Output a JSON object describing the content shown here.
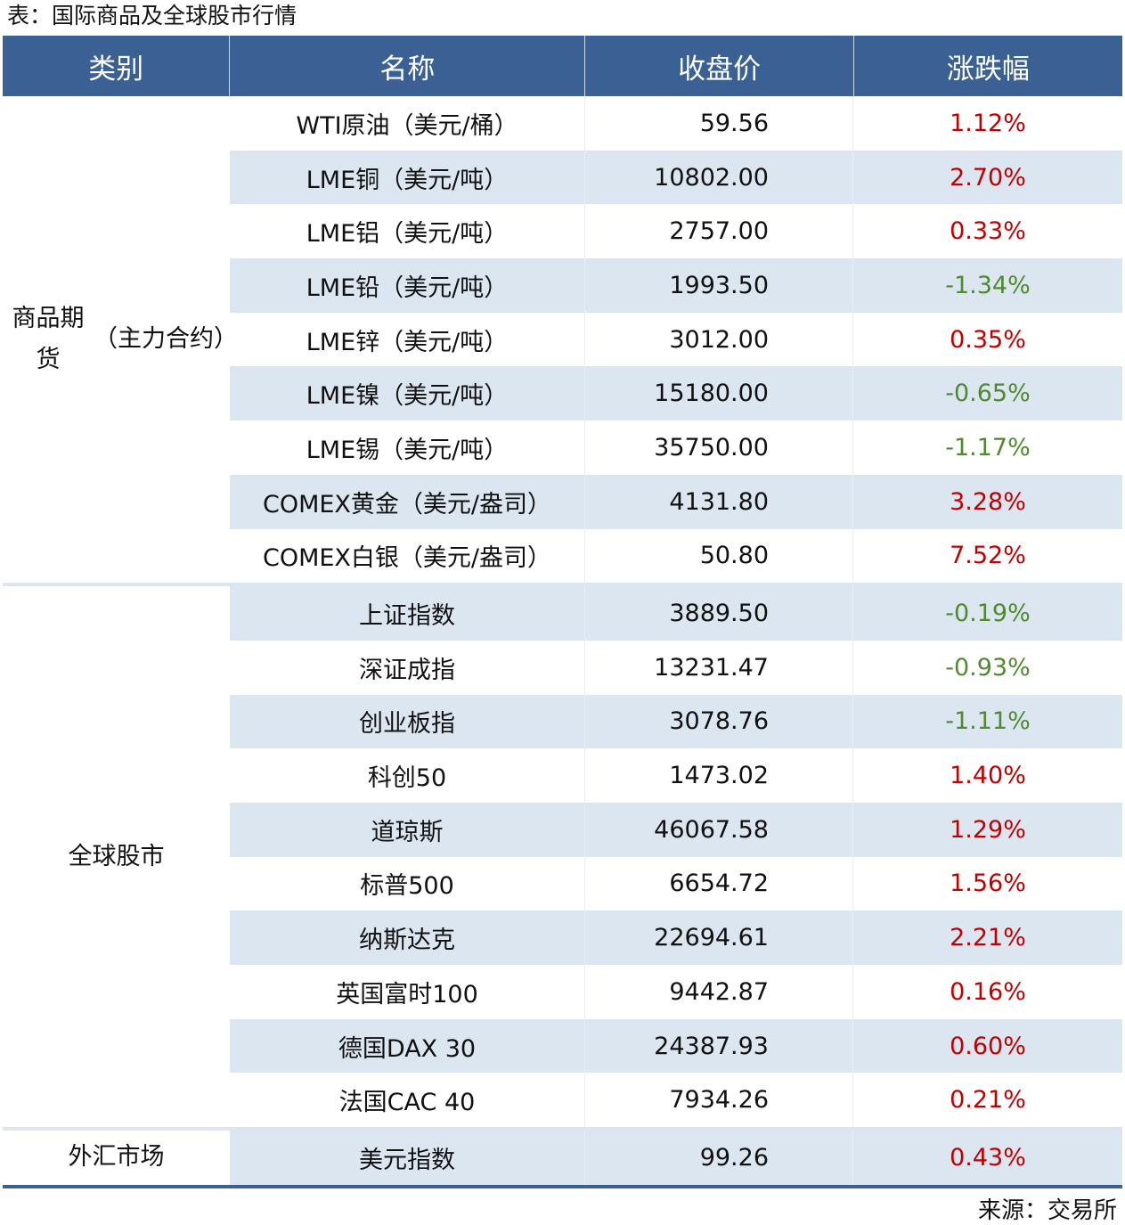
{
  "title": "表：国际商品及全球股市行情",
  "headers": [
    "类别",
    "名称",
    "收盘价",
    "涨跌幅"
  ],
  "colors": {
    "header": "#3b6194",
    "stripe": "#dce6f1",
    "up": "#c00000",
    "down": "#4e8a2e"
  },
  "groups": [
    {
      "label": "商品期货（主力合约）",
      "rows": [
        [
          "WTI原油（美元/桶）",
          "59.56",
          "1.12%"
        ],
        [
          "LME铜（美元/吨）",
          "10802.00",
          "2.70%"
        ],
        [
          "LME铝（美元/吨）",
          "2757.00",
          "0.33%"
        ],
        [
          "LME铅（美元/吨）",
          "1993.50",
          "-1.34%"
        ],
        [
          "LME锌（美元/吨）",
          "3012.00",
          "0.35%"
        ],
        [
          "LME镍（美元/吨）",
          "15180.00",
          "-0.65%"
        ],
        [
          "LME锡（美元/吨）",
          "35750.00",
          "-1.17%"
        ],
        [
          "COMEX黄金（美元/盎司）",
          "4131.80",
          "3.28%"
        ],
        [
          "COMEX白银（美元/盎司）",
          "50.80",
          "7.52%"
        ]
      ]
    },
    {
      "label": "全球股市",
      "rows": [
        [
          "上证指数",
          "3889.50",
          "-0.19%"
        ],
        [
          "深证成指",
          "13231.47",
          "-0.93%"
        ],
        [
          "创业板指",
          "3078.76",
          "-1.11%"
        ],
        [
          "科创50",
          "1473.02",
          "1.40%"
        ],
        [
          "道琼斯",
          "46067.58",
          "1.29%"
        ],
        [
          "标普500",
          "6654.72",
          "1.56%"
        ],
        [
          "纳斯达克",
          "22694.61",
          "2.21%"
        ],
        [
          "英国富时100",
          "9442.87",
          "0.16%"
        ],
        [
          "德国DAX 30",
          "24387.93",
          "0.60%"
        ],
        [
          "法国CAC 40",
          "7934.26",
          "0.21%"
        ]
      ]
    },
    {
      "label": "外汇市场",
      "rows": [
        [
          "美元指数",
          "99.26",
          "0.43%"
        ]
      ]
    }
  ],
  "source": "来源：交易所"
}
